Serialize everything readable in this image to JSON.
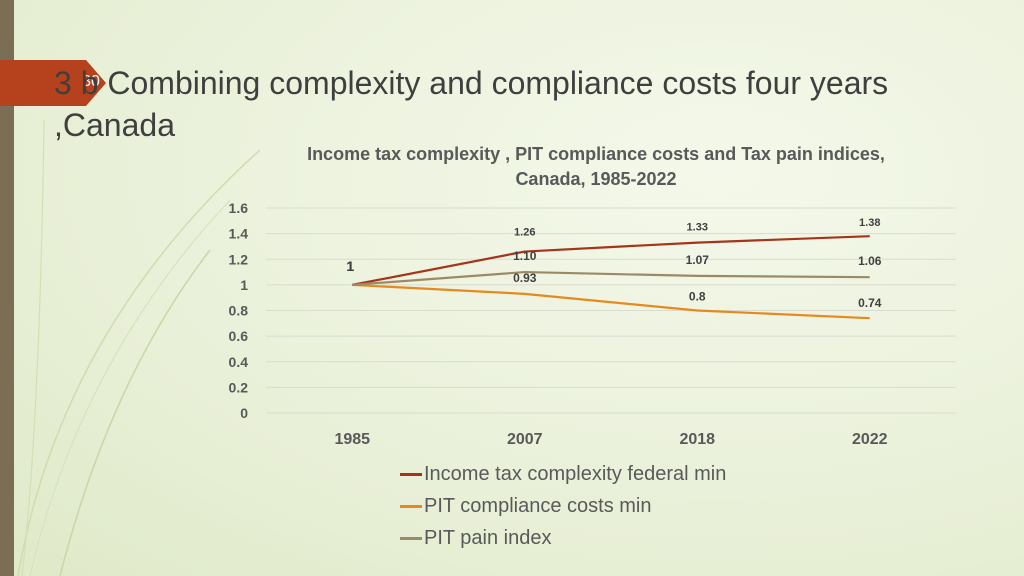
{
  "slide": {
    "number": "30",
    "title": "3 b  Combining complexity and compliance costs four years ,Canada"
  },
  "chart_data": {
    "type": "line",
    "title": "Income tax complexity , PIT compliance costs  and Tax pain indices, Canada, 1985-2022",
    "categories": [
      "1985",
      "2007",
      "2018",
      "2022"
    ],
    "ylim": [
      0,
      1.6
    ],
    "yticks": [
      "0",
      "0.2",
      "0.4",
      "0.6",
      "0.8",
      "1",
      "1.2",
      "1.4",
      "1.6"
    ],
    "grid": true,
    "legend_position": "bottom",
    "series": [
      {
        "name": "Income tax complexity federal min",
        "color": "#a5341b",
        "values": [
          1,
          1.26,
          1.33,
          1.38
        ],
        "labels": [
          "1",
          "1.26",
          "1.33",
          "1.38"
        ]
      },
      {
        "name": "PIT compliance costs min",
        "color": "#e6891f",
        "values": [
          1,
          0.93,
          0.8,
          0.74
        ],
        "labels": [
          "",
          "0.93",
          "0.8",
          "0.74"
        ]
      },
      {
        "name": "PIT pain index",
        "color": "#9c8a66",
        "values": [
          1,
          1.1,
          1.07,
          1.06
        ],
        "labels": [
          "1",
          "1.10",
          "1.07",
          "1.06"
        ]
      }
    ]
  }
}
